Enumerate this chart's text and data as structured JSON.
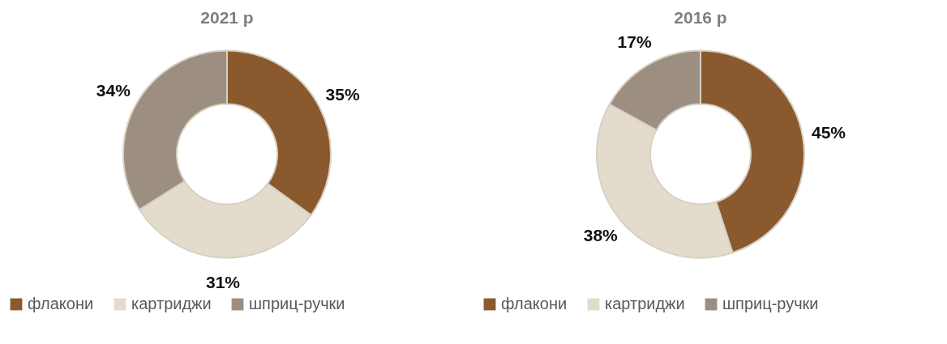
{
  "chart_data": [
    {
      "type": "donut",
      "title": "2021 р",
      "categories": [
        "флакони",
        "картриджи",
        "шприц-ручки"
      ],
      "values": [
        35,
        31,
        34
      ],
      "colors": [
        "#8a5a2e",
        "#e3dccd",
        "#9c8e80"
      ],
      "value_labels": [
        "35%",
        "31%",
        "34%"
      ],
      "legend": "bottom"
    },
    {
      "type": "donut",
      "title": "2016 р",
      "categories": [
        "флакони",
        "картриджи",
        "шприц-ручки"
      ],
      "values": [
        45,
        38,
        17
      ],
      "colors": [
        "#8a5a2e",
        "#e3dccd",
        "#9c8e80"
      ],
      "value_labels": [
        "45%",
        "38%",
        "17%"
      ],
      "legend": "bottom"
    }
  ]
}
